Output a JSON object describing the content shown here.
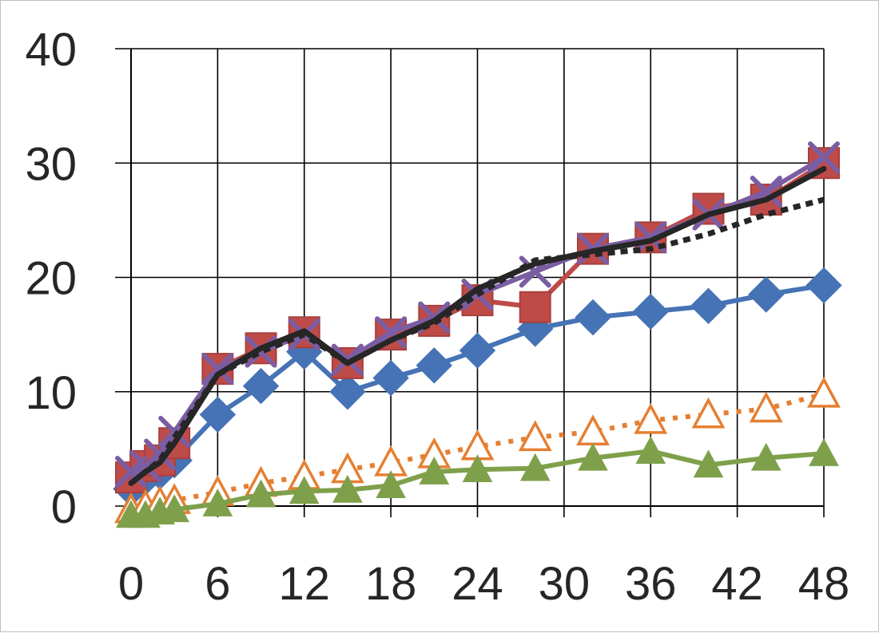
{
  "chart_data": {
    "type": "line",
    "title": "",
    "xlabel": "",
    "ylabel": "",
    "xlim": [
      0,
      48
    ],
    "ylim": [
      0,
      40
    ],
    "x_ticks": [
      "0",
      "6",
      "12",
      "18",
      "24",
      "30",
      "36",
      "42",
      "48"
    ],
    "y_ticks": [
      "0",
      "10",
      "20",
      "30",
      "40"
    ],
    "grid": true,
    "legend": "none",
    "series": [
      {
        "color": "#4573b5",
        "marker": "diamond",
        "line": "solid",
        "x": [
          0,
          1,
          2,
          3,
          6,
          9,
          12,
          15,
          18,
          21,
          24,
          28,
          32,
          36,
          40,
          44,
          48
        ],
        "y": [
          1.5,
          2.5,
          3.0,
          4.0,
          8.0,
          10.5,
          13.5,
          10.0,
          11.2,
          12.3,
          13.6,
          15.5,
          16.5,
          17.0,
          17.5,
          18.5,
          19.3
        ]
      },
      {
        "color": "#be4b48",
        "marker": "square",
        "line": "solid",
        "x": [
          0,
          1,
          2,
          3,
          6,
          9,
          12,
          15,
          18,
          21,
          24,
          28,
          32,
          36,
          40,
          44,
          48
        ],
        "y": [
          2.5,
          3.5,
          4.0,
          5.5,
          12.0,
          13.8,
          15.2,
          12.5,
          15.0,
          16.2,
          18.0,
          17.4,
          22.5,
          23.5,
          26.0,
          26.8,
          30.0
        ]
      },
      {
        "color": "#7b5da3",
        "marker": "x",
        "line": "solid",
        "x": [
          0,
          1,
          2,
          3,
          6,
          9,
          12,
          15,
          18,
          21,
          24,
          28,
          32,
          36,
          40,
          44,
          48
        ],
        "y": [
          3.0,
          3.5,
          4.5,
          6.5,
          12.0,
          13.5,
          15.0,
          12.8,
          15.2,
          16.5,
          18.5,
          20.5,
          22.5,
          23.5,
          25.5,
          27.5,
          30.5
        ]
      },
      {
        "color": "#e57f32",
        "marker": "triangle-open",
        "line": "dotted",
        "x": [
          0,
          1,
          2,
          3,
          6,
          9,
          12,
          15,
          18,
          21,
          24,
          28,
          32,
          36,
          40,
          44,
          48
        ],
        "y": [
          -0.3,
          0.0,
          0.3,
          0.5,
          1.2,
          2.0,
          2.6,
          3.2,
          3.8,
          4.5,
          5.2,
          6.0,
          6.5,
          7.5,
          8.0,
          8.5,
          9.8
        ]
      },
      {
        "color": "#7fa04b",
        "marker": "triangle",
        "line": "solid",
        "x": [
          0,
          1,
          2,
          3,
          6,
          9,
          12,
          15,
          18,
          21,
          24,
          28,
          32,
          36,
          40,
          44,
          48
        ],
        "y": [
          -0.8,
          -0.8,
          -0.5,
          -0.3,
          0.2,
          1.0,
          1.3,
          1.4,
          1.8,
          3.0,
          3.2,
          3.3,
          4.2,
          4.8,
          3.6,
          4.2,
          4.6
        ]
      },
      {
        "color": "#262626",
        "marker": "none",
        "line": "dotted",
        "x": [
          0,
          1,
          2,
          3,
          6,
          9,
          12,
          15,
          18,
          21,
          24,
          28,
          32,
          36,
          40,
          44,
          48
        ],
        "y": [
          2.0,
          3.0,
          4.0,
          6.0,
          11.5,
          13.5,
          15.0,
          12.5,
          14.5,
          16.0,
          18.5,
          21.5,
          22.0,
          22.5,
          23.8,
          25.5,
          26.8
        ]
      },
      {
        "color": "#262626",
        "marker": "none",
        "line": "solid",
        "x": [
          0,
          1,
          2,
          3,
          6,
          9,
          12,
          15,
          18,
          21,
          24,
          28,
          32,
          36,
          40,
          44,
          48
        ],
        "y": [
          2.0,
          3.0,
          3.8,
          5.5,
          11.5,
          13.8,
          15.3,
          12.5,
          14.5,
          16.2,
          19.0,
          21.2,
          22.3,
          23.2,
          25.5,
          26.8,
          29.5
        ]
      }
    ]
  }
}
